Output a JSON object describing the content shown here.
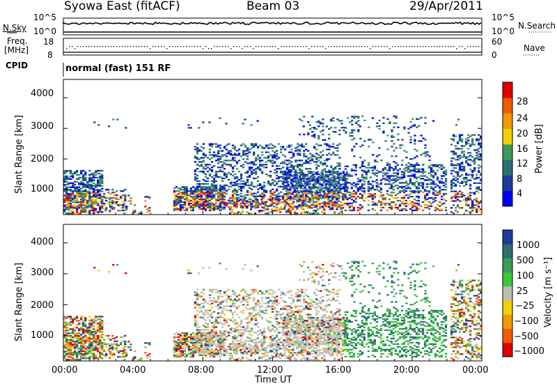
{
  "header": {
    "title": "Syowa East (fitACF)",
    "beam": "Beam 03",
    "date": "29/Apr/2011"
  },
  "left_labels": {
    "nsky": "N.Sky",
    "freq": "Freq.",
    "freq_unit": "[MHz]",
    "cpid": "CPID"
  },
  "right_labels": {
    "nsearch": "N.Search",
    "nave": "Nave"
  },
  "cpid_text": "normal (fast) 151 RF",
  "noise_panel": {
    "left_ticks": [
      "10^5",
      "10^0"
    ],
    "right_ticks": [
      "10^5",
      "10^0"
    ]
  },
  "freq_panel": {
    "left_ticks": [
      "18",
      "8"
    ],
    "right_ticks": [
      "60",
      "0"
    ]
  },
  "colors": {
    "power": [
      "#0000ff",
      "#1e3c9a",
      "#2e6e6e",
      "#3c9a5a",
      "#f0d000",
      "#f09a00",
      "#f05a00",
      "#e00000"
    ],
    "velocity": [
      "#e00000",
      "#f05a00",
      "#f09a00",
      "#f0d000",
      "#bebeb4",
      "#3cc83c",
      "#3c9a5a",
      "#2e6e6e",
      "#1e3c9a"
    ]
  },
  "chart_data": [
    {
      "type": "heatmap",
      "name": "power-panel",
      "ylabel": "Slant Range [km]",
      "yticks": [
        "4000",
        "3000",
        "2000",
        "1000"
      ],
      "ylim": [
        180,
        4600
      ],
      "colorbar_label": "Power [dB]",
      "colorbar_ticks": [
        "28",
        "24",
        "20",
        "16",
        "12",
        "8",
        "4"
      ]
    },
    {
      "type": "heatmap",
      "name": "velocity-panel",
      "ylabel": "Slant Range [km]",
      "yticks": [
        "4000",
        "3000",
        "2000",
        "1000"
      ],
      "ylim": [
        180,
        4600
      ],
      "colorbar_label": "Velocity [m s⁻¹]",
      "colorbar_ticks": [
        "1000",
        "500",
        "100",
        "25",
        "−25",
        "−100",
        "−500",
        "−1000"
      ],
      "xlabel": "Time UT",
      "xticks": [
        "00:00",
        "04:00",
        "08:00",
        "12:00",
        "16:00",
        "20:00",
        "00:00"
      ],
      "xlim": [
        0,
        24
      ]
    }
  ]
}
